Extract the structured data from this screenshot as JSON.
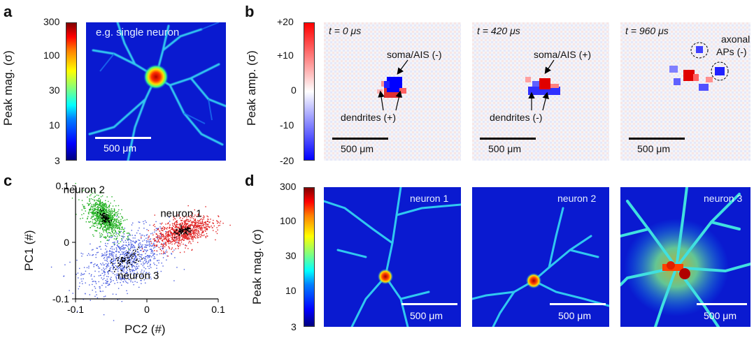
{
  "panels": {
    "a": {
      "label": "a",
      "colorbar_label": "Peak mag. (σ)",
      "ticks": [
        "300",
        "100",
        "30",
        "10",
        "3"
      ],
      "annotation": "e.g. single neuron",
      "scalebar": "500 μm"
    },
    "b": {
      "label": "b",
      "colorbar_label": "Peak amp. (σ)",
      "ticks": [
        "+20",
        "+10",
        "0",
        "-10",
        "-20"
      ],
      "frames": [
        {
          "time": "t = 0 μs",
          "soma": "soma/AIS (-)",
          "dendrites": "dendrites (+)",
          "scalebar": "500 μm"
        },
        {
          "time": "t = 420 μs",
          "soma": "soma/AIS (+)",
          "dendrites": "dendrites (-)",
          "scalebar": "500 μm"
        },
        {
          "time": "t = 960 μs",
          "axonal_line1": "axonal",
          "axonal_line2": "APs (-)",
          "scalebar": "500 μm"
        }
      ]
    },
    "c": {
      "label": "c",
      "xlabel": "PC2 (#)",
      "ylabel": "PC1 (#)",
      "xticks": [
        "-0.1",
        "0",
        "0.1"
      ],
      "yticks": [
        "0.1",
        "0",
        "-0.1"
      ],
      "cluster_labels": [
        "neuron 1",
        "neuron 2",
        "neuron 3"
      ],
      "colors": {
        "neuron1": "#e02020",
        "neuron2": "#20b020",
        "neuron3": "#4a5ee0"
      }
    },
    "d": {
      "label": "d",
      "colorbar_label": "Peak mag. (σ)",
      "ticks": [
        "300",
        "100",
        "30",
        "10",
        "3"
      ],
      "maps": [
        {
          "name": "neuron 1",
          "scalebar": "500 μm"
        },
        {
          "name": "neuron 2",
          "scalebar": "500 μm"
        },
        {
          "name": "neuron 3",
          "scalebar": "500 μm"
        }
      ]
    }
  },
  "chart_data": {
    "type": "scatter",
    "xlabel": "PC2 (#)",
    "ylabel": "PC1 (#)",
    "xlim": [
      -0.1,
      0.1
    ],
    "ylim": [
      -0.1,
      0.1
    ],
    "series": [
      {
        "name": "neuron 1",
        "center": [
          0.05,
          0.02
        ],
        "spread": [
          0.02,
          0.012
        ],
        "color": "#e02020"
      },
      {
        "name": "neuron 2",
        "center": [
          -0.06,
          0.045
        ],
        "spread": [
          0.012,
          0.015
        ],
        "color": "#20b020"
      },
      {
        "name": "neuron 3",
        "center": [
          -0.03,
          -0.03
        ],
        "spread": [
          0.03,
          0.025
        ],
        "color": "#4a5ee0"
      }
    ]
  }
}
